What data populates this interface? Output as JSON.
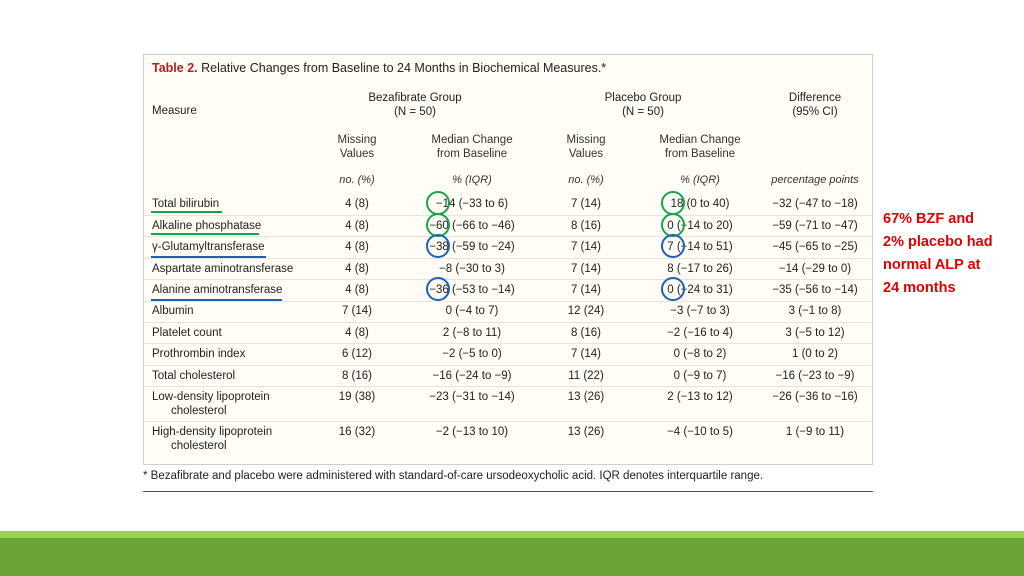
{
  "title": {
    "label": "Table 2.",
    "text": " Relative Changes from Baseline to 24 Months in Biochemical Measures.*"
  },
  "header": {
    "measure": "Measure",
    "bzf_group_line1": "Bezafibrate Group",
    "bzf_group_line2": "(N = 50)",
    "pbo_group_line1": "Placebo Group",
    "pbo_group_line2": "(N = 50)",
    "diff_line1": "Difference",
    "diff_line2": "(95% CI)",
    "missing_line1": "Missing",
    "missing_line2": "Values",
    "median_line1": "Median Change",
    "median_line2": "from Baseline",
    "unit_no": "no. (%)",
    "unit_iqr": "% (IQR)",
    "unit_pp": "percentage points"
  },
  "rows": [
    {
      "measure": "Total bilirubin",
      "bzf_missing": "4 (8)",
      "bzf_median": "−14 (−33 to 6)",
      "pbo_missing": "7 (14)",
      "pbo_median": "18 (0 to 40)",
      "diff": "−32 (−47 to −18)"
    },
    {
      "measure": "Alkaline phosphatase",
      "bzf_missing": "4 (8)",
      "bzf_median": "−60 (−66 to −46)",
      "pbo_missing": "8 (16)",
      "pbo_median": "0 (−14 to 20)",
      "diff": "−59 (−71 to −47)"
    },
    {
      "measure": "γ-Glutamyltransferase",
      "bzf_missing": "4 (8)",
      "bzf_median": "−38 (−59 to −24)",
      "pbo_missing": "7 (14)",
      "pbo_median": "7 (−14 to 51)",
      "diff": "−45 (−65 to −25)"
    },
    {
      "measure": "Aspartate aminotransferase",
      "bzf_missing": "4 (8)",
      "bzf_median": "−8 (−30 to 3)",
      "pbo_missing": "7 (14)",
      "pbo_median": "8 (−17 to 26)",
      "diff": "−14 (−29 to 0)"
    },
    {
      "measure": "Alanine aminotransferase",
      "bzf_missing": "4 (8)",
      "bzf_median": "−36 (−53 to −14)",
      "pbo_missing": "7 (14)",
      "pbo_median": "0 (−24 to 31)",
      "diff": "−35 (−56 to −14)"
    },
    {
      "measure": "Albumin",
      "bzf_missing": "7 (14)",
      "bzf_median": "0 (−4 to 7)",
      "pbo_missing": "12 (24)",
      "pbo_median": "−3 (−7 to 3)",
      "diff": "3 (−1 to 8)"
    },
    {
      "measure": "Platelet count",
      "bzf_missing": "4 (8)",
      "bzf_median": "2 (−8 to 11)",
      "pbo_missing": "8 (16)",
      "pbo_median": "−2 (−16 to 4)",
      "diff": "3 (−5 to 12)"
    },
    {
      "measure": "Prothrombin index",
      "bzf_missing": "6 (12)",
      "bzf_median": "−2 (−5 to 0)",
      "pbo_missing": "7 (14)",
      "pbo_median": "0 (−8 to 2)",
      "diff": "1 (0 to 2)"
    },
    {
      "measure": "Total cholesterol",
      "bzf_missing": "8 (16)",
      "bzf_median": "−16 (−24 to −9)",
      "pbo_missing": "11 (22)",
      "pbo_median": "0 (−9 to 7)",
      "diff": "−16 (−23 to −9)"
    },
    {
      "measure": "Low-density lipoprotein",
      "measure2": "cholesterol",
      "bzf_missing": "19 (38)",
      "bzf_median": "−23 (−31 to −14)",
      "pbo_missing": "13 (26)",
      "pbo_median": "2 (−13 to 12)",
      "diff": "−26 (−36 to −16)"
    },
    {
      "measure": "High-density lipoprotein",
      "measure2": "cholesterol",
      "bzf_missing": "16 (32)",
      "bzf_median": "−2 (−13 to 10)",
      "pbo_missing": "13 (26)",
      "pbo_median": "−4 (−10 to 5)",
      "diff": "1 (−9 to 11)"
    }
  ],
  "footnote": "* Bezafibrate and placebo were administered with standard-of-care ursodeoxycholic acid. IQR denotes interquartile range.",
  "callout": {
    "line1": "67% BZF and",
    "line2": "2% placebo had",
    "line3": "normal ALP at",
    "line4": "24 months"
  },
  "colors": {
    "title_label": "#b41e1e",
    "callout": "#e00000",
    "green_mark": "#1aa34a",
    "blue_mark": "#1f5fb5",
    "band_light": "#9bd34e",
    "band_dark": "#6ba336"
  }
}
